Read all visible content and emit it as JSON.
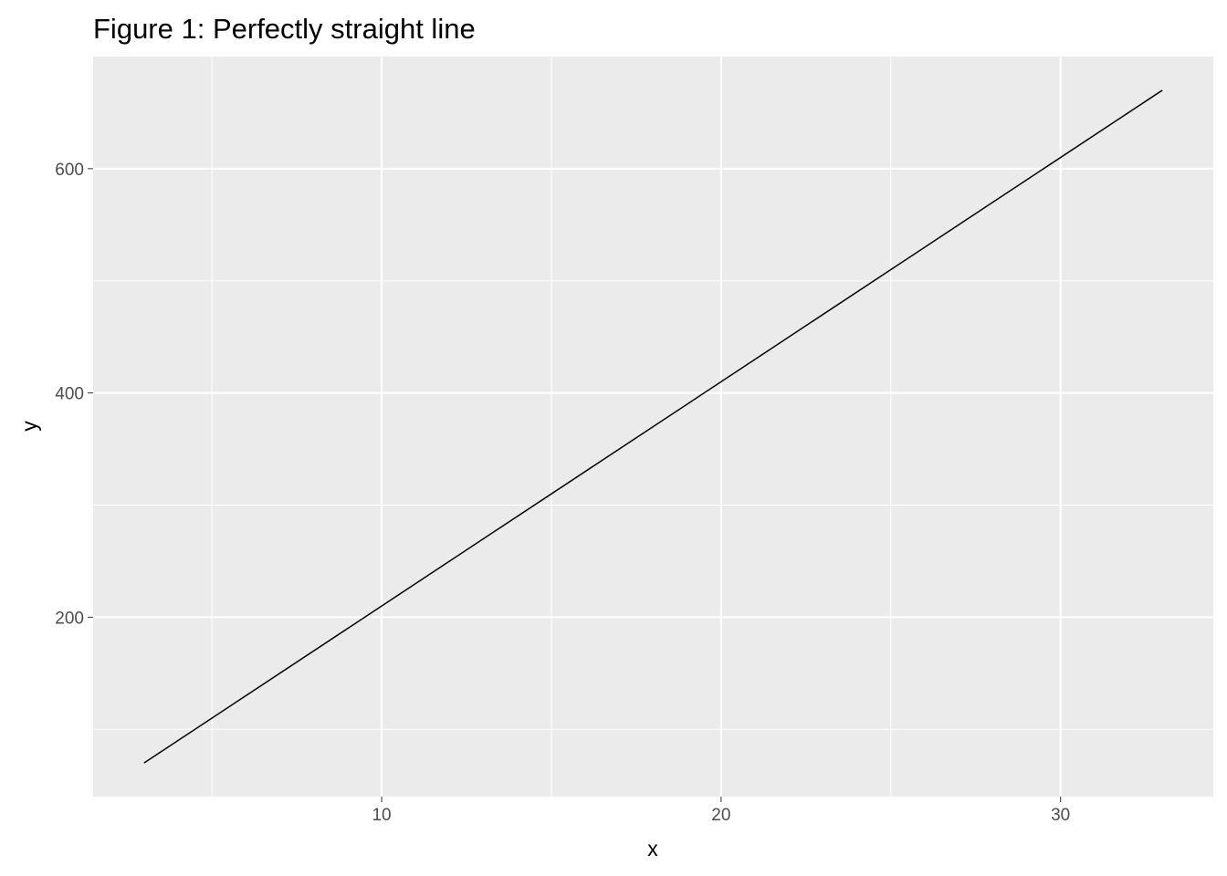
{
  "chart_data": {
    "type": "line",
    "title": "Figure 1: Perfectly straight line",
    "xlabel": "x",
    "ylabel": "y",
    "x": [
      3,
      33
    ],
    "series": [
      {
        "values": [
          70,
          670
        ]
      }
    ],
    "xlim": [
      1.5,
      34.5
    ],
    "ylim": [
      40,
      700
    ],
    "x_ticks": [
      10,
      20,
      30
    ],
    "x_tick_labels": [
      "10",
      "20",
      "30"
    ],
    "x_minor_ticks": [
      5,
      15,
      25
    ],
    "y_ticks": [
      200,
      400,
      600
    ],
    "y_tick_labels": [
      "200",
      "400",
      "600"
    ],
    "y_minor_ticks": [
      100,
      300,
      500
    ],
    "grid": true,
    "colors": {
      "panel_background": "#ebebeb",
      "grid_line": "#ffffff",
      "series_line": "#000000",
      "tick_label": "#4d4d4d",
      "text": "#000000"
    }
  }
}
